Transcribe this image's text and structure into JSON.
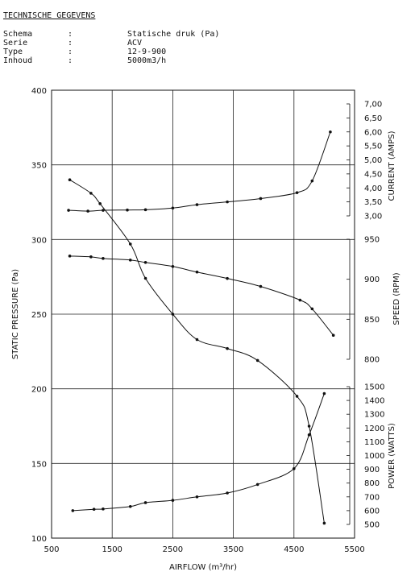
{
  "header": {
    "title": "TECHNISCHE GEGEVENS",
    "specs": [
      {
        "label": "Schema",
        "sep": ":",
        "value": "Statische druk (Pa)"
      },
      {
        "label": "Serie",
        "sep": ":",
        "value": "ACV"
      },
      {
        "label": "Type",
        "sep": ":",
        "value": "12-9-900"
      },
      {
        "label": "Inhoud",
        "sep": ":",
        "value": "5000m3/h"
      }
    ]
  },
  "chart_data": {
    "type": "line",
    "xlabel": "AIRFLOW (m³/hr)",
    "xlim": [
      500,
      5500
    ],
    "x_ticks": [
      "500",
      "1500",
      "2500",
      "3500",
      "4500",
      "5500"
    ],
    "grid": true,
    "axes": {
      "pressure": {
        "label": "STATIC PRESSURE (Pa)",
        "range": [
          100,
          400
        ],
        "ticks": [
          "100",
          "150",
          "200",
          "250",
          "300",
          "350",
          "400"
        ]
      },
      "current": {
        "label": "CURRENT (AMPS)",
        "range": [
          3.0,
          7.0
        ],
        "ticks": [
          "3,00",
          "3,50",
          "4,00",
          "4,50",
          "5,00",
          "5,50",
          "6,00",
          "6,50",
          "7,00"
        ]
      },
      "speed": {
        "label": "SPEED (RPM)",
        "range": [
          800,
          950
        ],
        "ticks": [
          "800",
          "850",
          "900",
          "950"
        ]
      },
      "power": {
        "label": "POWER (WATTS)",
        "range": [
          500,
          1500
        ],
        "ticks": [
          "500",
          "600",
          "700",
          "800",
          "900",
          "1000",
          "1100",
          "1200",
          "1300",
          "1400",
          "1500"
        ]
      }
    },
    "series": [
      {
        "axis": "pressure",
        "points": [
          [
            800,
            340
          ],
          [
            1150,
            331
          ],
          [
            1300,
            324
          ],
          [
            1800,
            297
          ],
          [
            2050,
            274
          ],
          [
            2500,
            250
          ],
          [
            2900,
            233
          ],
          [
            3400,
            227
          ],
          [
            3900,
            219
          ],
          [
            4550,
            195
          ],
          [
            4750,
            175
          ],
          [
            5000,
            110
          ]
        ]
      },
      {
        "axis": "current",
        "points": [
          [
            780,
            3.2
          ],
          [
            1100,
            3.17
          ],
          [
            1350,
            3.2
          ],
          [
            1750,
            3.21
          ],
          [
            2050,
            3.22
          ],
          [
            2500,
            3.28
          ],
          [
            2900,
            3.4
          ],
          [
            3400,
            3.5
          ],
          [
            3950,
            3.62
          ],
          [
            4550,
            3.83
          ],
          [
            4800,
            4.25
          ],
          [
            5100,
            6.0
          ]
        ]
      },
      {
        "axis": "speed",
        "points": [
          [
            800,
            929
          ],
          [
            1150,
            928
          ],
          [
            1350,
            926
          ],
          [
            1800,
            924
          ],
          [
            2050,
            921
          ],
          [
            2500,
            916
          ],
          [
            2900,
            909
          ],
          [
            3400,
            901
          ],
          [
            3950,
            891
          ],
          [
            4600,
            874
          ],
          [
            4800,
            863
          ],
          [
            5150,
            830
          ]
        ]
      },
      {
        "axis": "power",
        "points": [
          [
            850,
            600
          ],
          [
            1200,
            610
          ],
          [
            1350,
            612
          ],
          [
            1800,
            630
          ],
          [
            2050,
            658
          ],
          [
            2500,
            675
          ],
          [
            2900,
            700
          ],
          [
            3400,
            728
          ],
          [
            3900,
            790
          ],
          [
            4500,
            905
          ],
          [
            4750,
            1150
          ],
          [
            5000,
            1450
          ]
        ]
      }
    ]
  }
}
